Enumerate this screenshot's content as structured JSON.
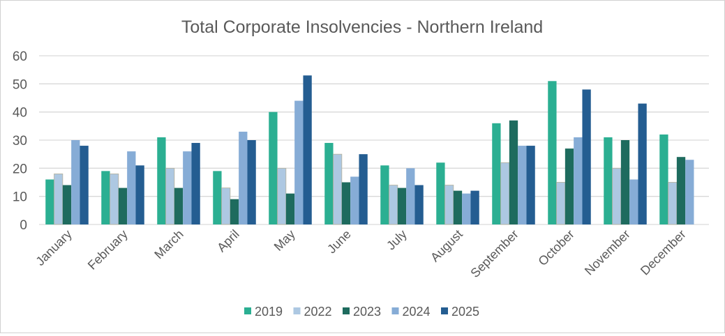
{
  "chart_data": {
    "type": "bar",
    "title": "Total Corporate Insolvencies - Northern Ireland",
    "xlabel": "",
    "ylabel": "",
    "ylim": [
      0,
      60
    ],
    "yticks": [
      "0",
      "10",
      "20",
      "30",
      "40",
      "50",
      "60"
    ],
    "grid": true,
    "legend_position": "bottom",
    "categories": [
      "January",
      "February",
      "March",
      "April",
      "May",
      "June",
      "July",
      "August",
      "September",
      "October",
      "November",
      "December"
    ],
    "series": [
      {
        "name": "2019",
        "color": "#2BAF92",
        "values": [
          16,
          19,
          31,
          19,
          40,
          29,
          21,
          22,
          36,
          51,
          31,
          32
        ]
      },
      {
        "name": "2022",
        "color": "#ADC8E2",
        "values": [
          18,
          18,
          20,
          13,
          20,
          25,
          14,
          14,
          22,
          15,
          20,
          15
        ]
      },
      {
        "name": "2023",
        "color": "#1E6B5E",
        "values": [
          14,
          13,
          13,
          9,
          11,
          15,
          13,
          12,
          37,
          27,
          30,
          24
        ]
      },
      {
        "name": "2024",
        "color": "#86ACD6",
        "values": [
          30,
          26,
          26,
          33,
          44,
          17,
          20,
          11,
          28,
          31,
          16,
          23
        ]
      },
      {
        "name": "2025",
        "color": "#245D91",
        "values": [
          28,
          21,
          29,
          30,
          53,
          25,
          14,
          12,
          28,
          48,
          43,
          null
        ]
      }
    ]
  }
}
